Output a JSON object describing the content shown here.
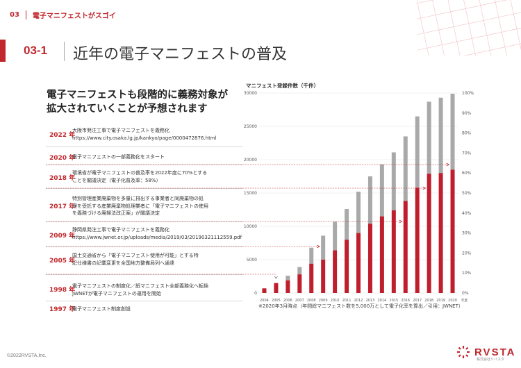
{
  "header": {
    "section_number": "03",
    "section_title": "電子マニフェストがスゴイ"
  },
  "section": {
    "number": "03-1",
    "title": "近年の電子マニフェストの普及"
  },
  "lead": {
    "line1": "電子マニフェストも段階的に義務対象が",
    "line2": "拡大されていくことが予想されます"
  },
  "timeline": [
    {
      "year": "2022 年",
      "lines": [
        "大阪市発注工事で電子マニフェストを義務化",
        "https://www.city.osaka.lg.jp/kankyo/page/0000472876.html"
      ]
    },
    {
      "year": "2020 年",
      "lines": [
        "電子マニフェストの一部義務化をスタート"
      ]
    },
    {
      "year": "2018 年",
      "lines": [
        "環境省が電子マニフェストの普及率を2022年度に70%とする",
        "ことを閣議決定（電子化普及率：58%）"
      ]
    },
    {
      "year": "2017 年",
      "lines": [
        "特別管理産業廃棄物を多量に排出する事業者と同廃棄物の処",
        "理を受託する産業廃棄物処理業者に「電子マニフェストの使用",
        "を義務づける廃掃法改正案」が閣議決定"
      ]
    },
    {
      "year": "2009 年",
      "lines": [
        "静岡県発注工事で電子マニフェストを義務化",
        "https://www.jwnet.or.jp/uploads/media/2019/03/20190321112559.pdf"
      ]
    },
    {
      "year": "2005 年",
      "lines": [
        "国土交通省から「電子マニフェスト使用が可能」とする特",
        "記仕様書の記載変更を全国地方整備局列へ通達"
      ]
    },
    {
      "year": "1998 年",
      "lines": [
        "電子マニフェストの制度化／紙マニフェスト全部義務化へ転換",
        "JWNETが電子マニフェストの運用を開始"
      ]
    },
    {
      "year": "1997 年",
      "lines": [
        "電子マニフェスト制度創設"
      ]
    }
  ],
  "chart_data": {
    "type": "bar",
    "title": "マニフェスト登録件数（千件）",
    "categories": [
      "2004",
      "2005",
      "2006",
      "2007",
      "2008",
      "2009",
      "2010",
      "2011",
      "2012",
      "2013",
      "2014",
      "2015",
      "2016",
      "2017",
      "2018",
      "2019",
      "2020"
    ],
    "x_unit_note": "年度",
    "series": [
      {
        "role": "total",
        "values": [
          500,
          1500,
          2600,
          3900,
          6800,
          8600,
          10700,
          12600,
          15200,
          17500,
          19300,
          21100,
          23500,
          26500,
          28700,
          29300,
          29900
        ]
      },
      {
        "role": "electronic",
        "values": [
          700,
          1500,
          1900,
          2800,
          4400,
          5000,
          6400,
          8000,
          9000,
          10400,
          11500,
          12400,
          13800,
          15800,
          17900,
          18000,
          18500
        ]
      }
    ],
    "ylim_left": [
      0,
      30000
    ],
    "yticks_left": [
      "0",
      "5000",
      "10000",
      "15000",
      "20000",
      "25000",
      "30000"
    ],
    "yticks_right": [
      "0%",
      "10%",
      "20%",
      "30%",
      "40%",
      "50%",
      "60%",
      "70%",
      "80%",
      "90%",
      "100%"
    ],
    "colors": {
      "total": "#a9a9a9",
      "electronic": "#bf1e2d",
      "accent": "#c0282d"
    }
  },
  "footnote": "※2020年3月時点（年間総マニフェスト数を5,000万として電子化率を算出／引用：JWNET）",
  "copyright": "©2022RVSTA,Inc.",
  "logo": {
    "name": "RVSTA",
    "sub": "株式会社リバスタ"
  }
}
